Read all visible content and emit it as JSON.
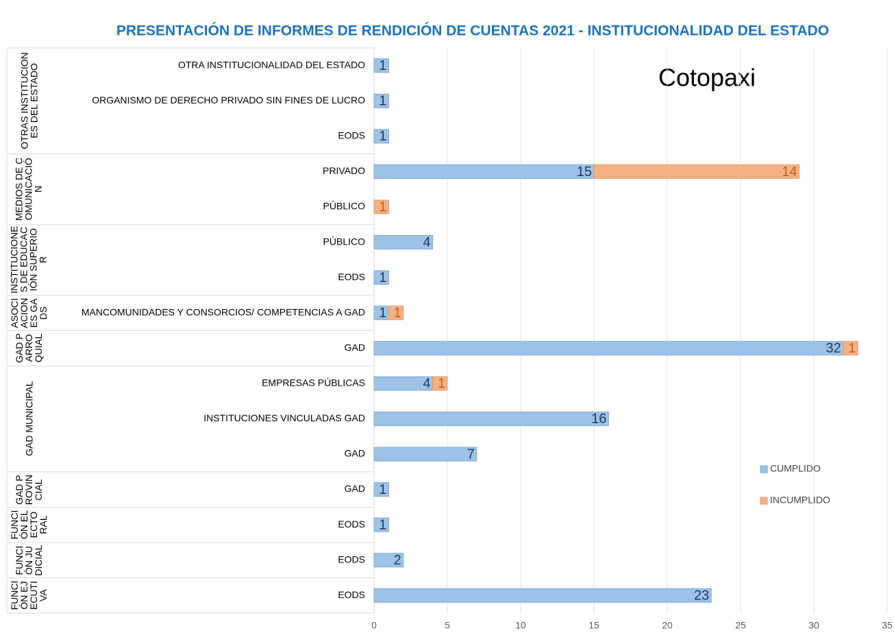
{
  "chart_data": {
    "type": "stacked-bar-horizontal",
    "title": "PRESENTACIÓN DE INFORMES DE RENDICIÓN DE CUENTAS 2021 - INSTITUCIONALIDAD DEL ESTADO",
    "annotation": "Cotopaxi",
    "categories": [
      "OTRA INSTITUCIONALIDAD DEL ESTADO",
      "ORGANISMO DE DERECHO PRIVADO SIN FINES DE LUCRO",
      "EODS",
      "PRIVADO",
      "PÚBLICO",
      "PÚBLICO",
      "EODS",
      "MANCOMUNIDADES Y  CONSORCIOS/ COMPETENCIAS A GAD",
      "GAD",
      "EMPRESAS PÚBLICAS",
      "INSTITUCIONES VINCULADAS GAD",
      "GAD",
      "GAD",
      "EODS",
      "EODS",
      "EODS"
    ],
    "groups": [
      {
        "label": "OTRAS INSTITUCIONES DEL ESTADO",
        "span": 3
      },
      {
        "label": "MEDIOS DE COMUNICACIÓN",
        "span": 2
      },
      {
        "label": "INSTITUCIONES DE EDUCACIÓN SUPERIOR",
        "span": 2
      },
      {
        "label": "ASOCIACIONES GADS",
        "span": 1
      },
      {
        "label": "GAD PARROQUIAL",
        "span": 1
      },
      {
        "label": "GAD MUNICIPAL",
        "span": 3
      },
      {
        "label": "GAD PROVINCIAL",
        "span": 1
      },
      {
        "label": "FUNCIÓN ELECTORAL",
        "span": 1
      },
      {
        "label": "FUNCIÓN JUDICIAL",
        "span": 1
      },
      {
        "label": "FUNCIÓN EJECUTIVA",
        "span": 1
      }
    ],
    "series": [
      {
        "name": "CUMPLIDO",
        "color": "#9dc3e6",
        "label_color": "#1f3864",
        "values": [
          1,
          1,
          1,
          15,
          null,
          4,
          1,
          1,
          32,
          4,
          16,
          7,
          1,
          1,
          2,
          23
        ]
      },
      {
        "name": "INCUMPLIDO",
        "color": "#f4b183",
        "label_color": "#c55a11",
        "values": [
          null,
          null,
          null,
          14,
          1,
          null,
          null,
          1,
          1,
          1,
          null,
          null,
          null,
          null,
          null,
          null
        ]
      }
    ],
    "xlim": [
      0,
      35
    ],
    "xticks": [
      0,
      5,
      10,
      15,
      20,
      25,
      30,
      35
    ],
    "grid": true
  }
}
